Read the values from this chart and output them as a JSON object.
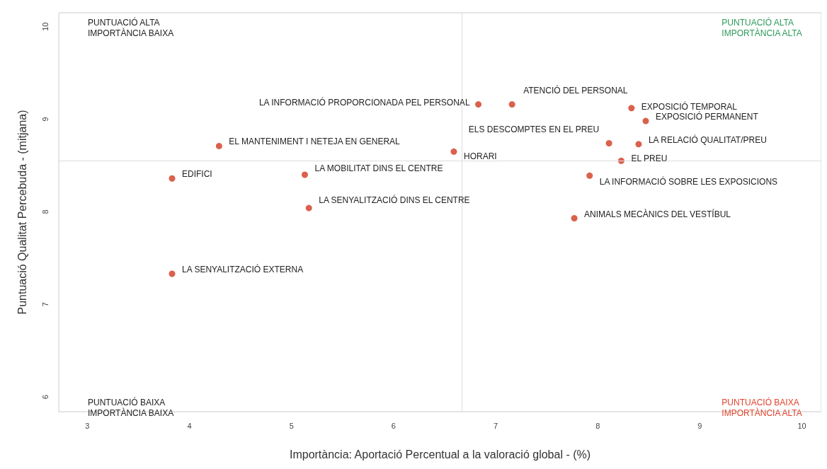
{
  "chart_data": {
    "type": "scatter",
    "xlabel": "Importància: Aportació Percentual a la valoració global - (%)",
    "ylabel": "Puntuació Qualitat Percebuda - (mitjana)",
    "x": [
      6.83,
      7.16,
      8.33,
      8.47,
      8.11,
      8.4,
      8.23,
      7.92,
      7.77,
      6.59,
      4.29,
      3.83,
      5.13,
      5.17,
      3.83
    ],
    "values": [
      9.16,
      9.16,
      9.12,
      8.98,
      8.74,
      8.73,
      8.55,
      8.39,
      7.93,
      8.65,
      8.71,
      8.36,
      8.4,
      8.04,
      7.33
    ],
    "color": "#d13a1f",
    "marker": "circle",
    "xlim": [
      2.72,
      10.19
    ],
    "xticks": [
      3,
      4,
      5,
      6,
      7,
      8,
      9,
      10
    ],
    "ylim": [
      5.84,
      10.15
    ],
    "yticks": [
      6,
      7,
      8,
      9,
      10
    ],
    "grid": false,
    "ref_lines": [
      {
        "axis": "x",
        "value": 6.67,
        "color": "#dcdcdc"
      },
      {
        "axis": "y",
        "value": 8.55,
        "color": "#dcdcdc"
      }
    ],
    "annotations": [
      "PUNTUACIÓ ALTA\nIMPORTÀNCIA BAIXA",
      "PUNTUACIÓ ALTA\nIMPORTÀNCIA ALTA",
      "PUNTUACIÓ BAIXA\nIMPORTÀNCIA BAIXA",
      "PUNTUACIÓ BAIXA\nIMPORTÀNCIA ALTA",
      {
        "text": "LA INFORMACIÓ PROPORCIONADA PEL PERSONAL",
        "x": 6.83,
        "y": 9.16
      },
      {
        "text": "ATENCIÓ DEL PERSONAL",
        "x": 7.16,
        "y": 9.16
      },
      {
        "text": "EXPOSICIÓ TEMPORAL",
        "x": 8.33,
        "y": 9.12
      },
      {
        "text": "EXPOSICIÓ PERMANENT",
        "x": 8.47,
        "y": 8.98
      },
      {
        "text": "ELS DESCOMPTES EN EL PREU",
        "x": 8.11,
        "y": 8.74
      },
      {
        "text": "LA RELACIÓ QUALITAT/PREU",
        "x": 8.4,
        "y": 8.73
      },
      {
        "text": "EL PREU",
        "x": 8.23,
        "y": 8.55
      },
      {
        "text": "LA INFORMACIÓ SOBRE LES EXPOSICIONS",
        "x": 7.92,
        "y": 8.39
      },
      {
        "text": "ANIMALS MECÀNICS DEL VESTÍBUL",
        "x": 7.77,
        "y": 7.93
      },
      {
        "text": "HORARI",
        "x": 6.59,
        "y": 8.65
      },
      {
        "text": "EL MANTENIMENT I NETEJA EN GENERAL",
        "x": 4.29,
        "y": 8.71
      },
      {
        "text": "EDIFICI",
        "x": 3.83,
        "y": 8.36
      },
      {
        "text": "LA MOBILITAT DINS EL CENTRE",
        "x": 5.13,
        "y": 8.4
      },
      {
        "text": "LA SENYALITZACIÓ DINS EL CENTRE",
        "x": 5.17,
        "y": 8.04
      },
      {
        "text": "LA SENYALITZACIÓ EXTERNA",
        "x": 3.83,
        "y": 7.33
      }
    ]
  }
}
